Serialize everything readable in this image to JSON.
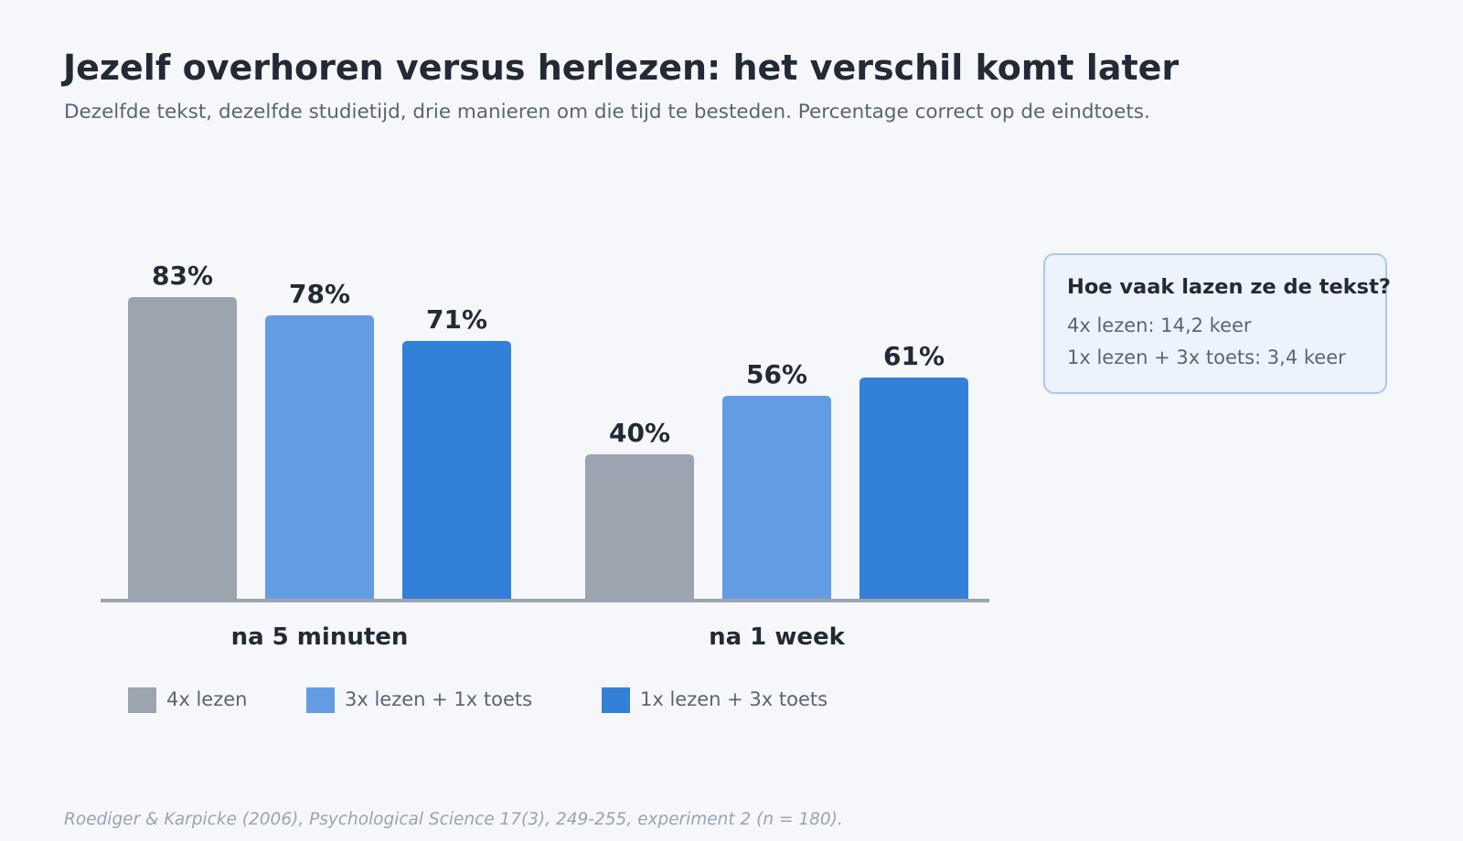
{
  "header": {
    "title": "Jezelf overhoren versus herlezen: het verschil komt later",
    "subtitle": "Dezelfde tekst, dezelfde studietijd, drie manieren om die tijd te besteden. Percentage correct op de eindtoets."
  },
  "chart_data": {
    "type": "bar",
    "title": "Jezelf overhoren versus herlezen: het verschil komt later",
    "subtitle": "Dezelfde tekst, dezelfde studietijd, drie manieren om die tijd te besteden. Percentage correct op de eindtoets.",
    "categories": [
      "na 5 minuten",
      "na 1 week"
    ],
    "series": [
      {
        "name": "4x lezen",
        "values": [
          83,
          40
        ],
        "color": "#9ca4b0"
      },
      {
        "name": "3x lezen + 1x toets",
        "values": [
          78,
          56
        ],
        "color": "#639ce2"
      },
      {
        "name": "1x lezen + 3x toets",
        "values": [
          71,
          61
        ],
        "color": "#3380d8"
      }
    ],
    "value_suffix": "%",
    "xlabel": "",
    "ylabel": "",
    "ylim": [
      0,
      100
    ],
    "grid": false,
    "legend": "bottom"
  },
  "note": {
    "title": "Hoe vaak lazen ze de tekst?",
    "lines": [
      "4x lezen: 14,2 keer",
      "1x lezen + 3x toets: 3,4 keer"
    ]
  },
  "footer": {
    "source": "Roediger & Karpicke (2006), Psychological Science 17(3), 249-255, experiment 2 (n = 180)."
  },
  "colors": {
    "background": "#f5f7fb",
    "axis": "#9ca4b0",
    "note_border": "#a9c8ea",
    "note_fill": "#edf3fc"
  }
}
